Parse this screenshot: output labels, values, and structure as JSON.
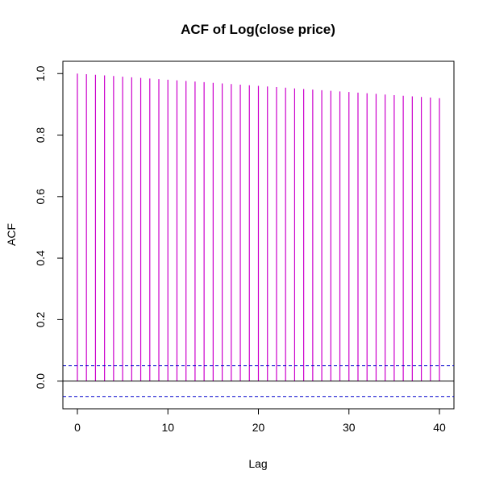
{
  "chart_data": {
    "type": "bar",
    "title": "ACF of Log(close price)",
    "xlabel": "Lag",
    "ylabel": "ACF",
    "xlim": [
      -1.6,
      41.6
    ],
    "ylim": [
      -0.09,
      1.04
    ],
    "x_ticks": [
      0,
      10,
      20,
      30,
      40
    ],
    "x_tick_labels": [
      "0",
      "10",
      "20",
      "30",
      "40"
    ],
    "y_ticks": [
      0.0,
      0.2,
      0.4,
      0.6,
      0.8,
      1.0
    ],
    "y_tick_labels": [
      "0.0",
      "0.2",
      "0.4",
      "0.6",
      "0.8",
      "1.0"
    ],
    "lags": [
      0,
      1,
      2,
      3,
      4,
      5,
      6,
      7,
      8,
      9,
      10,
      11,
      12,
      13,
      14,
      15,
      16,
      17,
      18,
      19,
      20,
      21,
      22,
      23,
      24,
      25,
      26,
      27,
      28,
      29,
      30,
      31,
      32,
      33,
      34,
      35,
      36,
      37,
      38,
      39,
      40
    ],
    "values": [
      1.0,
      0.998,
      0.996,
      0.994,
      0.992,
      0.99,
      0.988,
      0.986,
      0.984,
      0.982,
      0.98,
      0.978,
      0.976,
      0.974,
      0.972,
      0.97,
      0.968,
      0.966,
      0.964,
      0.962,
      0.96,
      0.958,
      0.956,
      0.954,
      0.952,
      0.95,
      0.948,
      0.946,
      0.944,
      0.942,
      0.94,
      0.938,
      0.936,
      0.934,
      0.932,
      0.93,
      0.928,
      0.926,
      0.924,
      0.922,
      0.92
    ],
    "confidence_bound": 0.05,
    "grid": false,
    "colors": {
      "bars": "#cc00cc",
      "confidence": "#0000cc",
      "zero_line": "#000000",
      "frame": "#000000"
    }
  }
}
